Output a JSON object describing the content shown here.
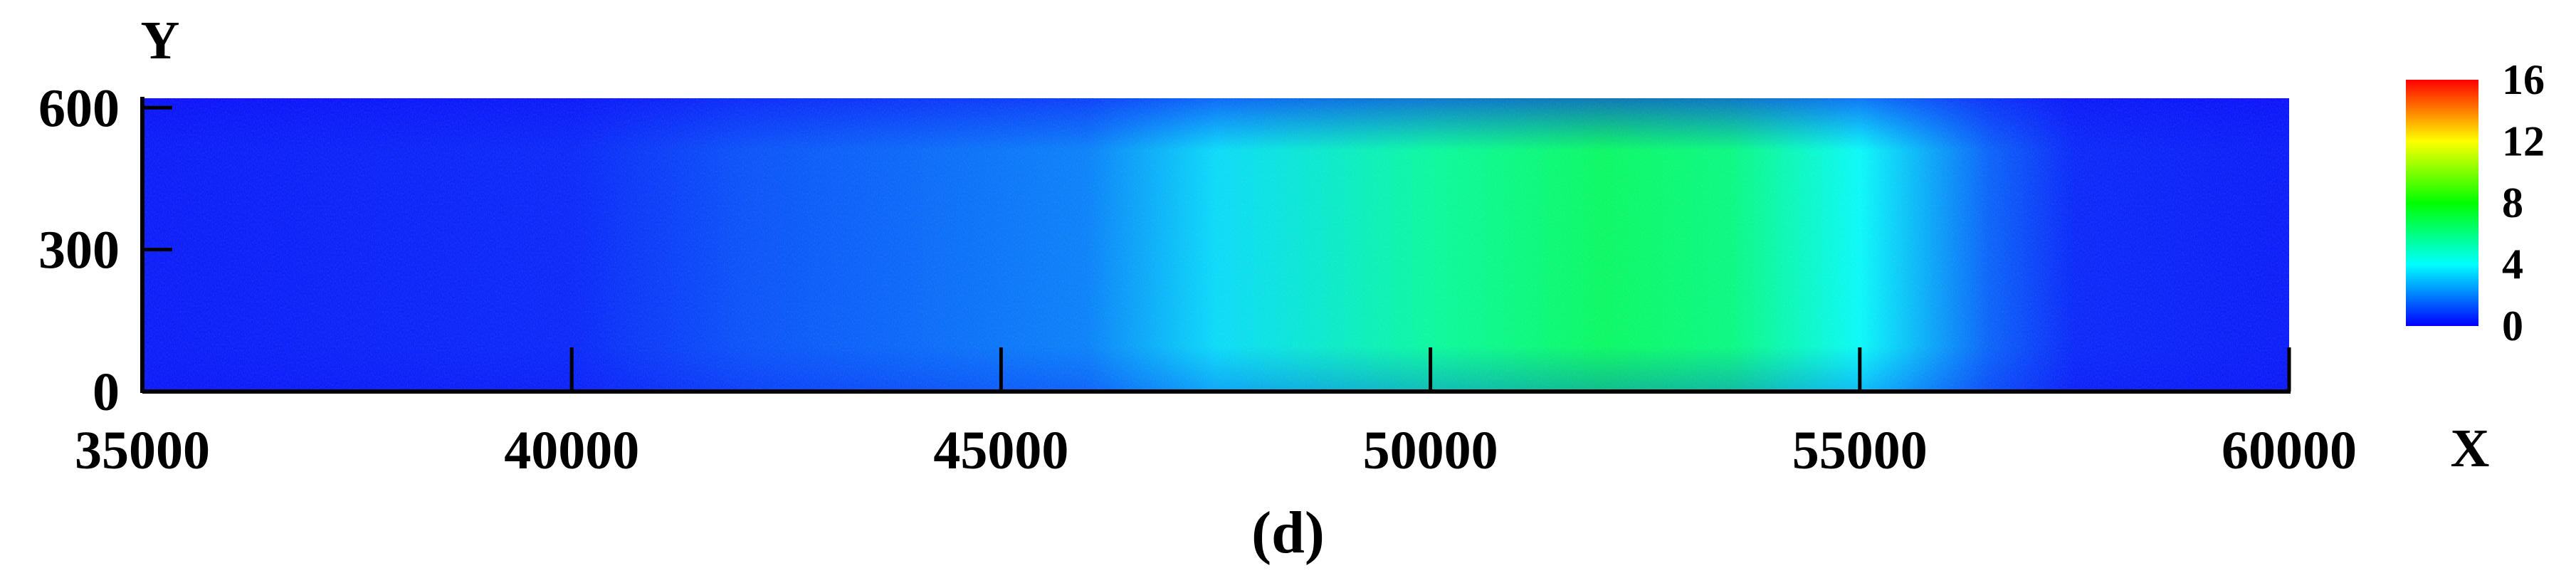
{
  "chart_data": {
    "type": "heatmap",
    "xlabel": "X",
    "ylabel": "Y",
    "xlim": [
      35000,
      60000
    ],
    "ylim": [
      0,
      620
    ],
    "x_ticks": [
      "35000",
      "40000",
      "45000",
      "50000",
      "55000",
      "60000"
    ],
    "y_ticks": [
      "0",
      "300",
      "600"
    ],
    "colorbar": {
      "min": 0,
      "max": 16,
      "ticks": [
        "0",
        "4",
        "8",
        "12",
        "16"
      ],
      "colors": [
        "#0000ff",
        "#00ffff",
        "#00ff00",
        "#ffff00",
        "#ff0000"
      ]
    },
    "background_color": "#0000ff",
    "x_profile": [
      {
        "x": 35000,
        "level": 0.3
      },
      {
        "x": 40000,
        "level": 0.5
      },
      {
        "x": 42000,
        "level": 1.2
      },
      {
        "x": 44000,
        "level": 1.6
      },
      {
        "x": 46000,
        "level": 2.0
      },
      {
        "x": 47500,
        "level": 3.5
      },
      {
        "x": 50000,
        "level": 5.5
      },
      {
        "x": 52000,
        "level": 6.5
      },
      {
        "x": 53500,
        "level": 6.0
      },
      {
        "x": 55000,
        "level": 4.0
      },
      {
        "x": 56500,
        "level": 1.5
      },
      {
        "x": 57500,
        "level": 0.5
      },
      {
        "x": 60000,
        "level": 0.3
      }
    ]
  },
  "caption": "(d)"
}
